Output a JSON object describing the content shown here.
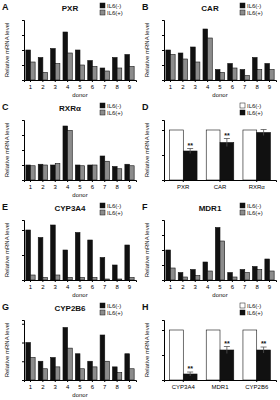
{
  "chart_data": [
    {
      "type": "bar",
      "panel_label": "A",
      "title": "PXR",
      "x_label": "donor",
      "y_label": "Relative mRNA level",
      "categories": [
        "1",
        "2",
        "3",
        "4",
        "5",
        "6",
        "7",
        "8",
        "9"
      ],
      "series": [
        {
          "name": "IL6(-)",
          "color": "#111111",
          "values": [
            1.0,
            0.75,
            1.05,
            1.6,
            1.0,
            0.65,
            0.4,
            0.75,
            0.85
          ]
        },
        {
          "name": "IL6(+)",
          "color": "#8c8c8c",
          "values": [
            0.6,
            0.25,
            0.55,
            0.9,
            0.5,
            0.45,
            0.3,
            0.4,
            0.45
          ]
        }
      ],
      "ylim": [
        0,
        2
      ],
      "yticks": [
        0,
        0.5,
        1,
        1.5,
        2
      ],
      "grid": false,
      "tick_labels": "x",
      "legend": "upper right"
    },
    {
      "type": "bar",
      "panel_label": "B",
      "title": "CAR",
      "x_label": "donor",
      "y_label": "Relative mRNA level",
      "categories": [
        "1",
        "2",
        "3",
        "4",
        "5",
        "6",
        "7",
        "8",
        "9"
      ],
      "series": [
        {
          "name": "IL6(-)",
          "color": "#111111",
          "values": [
            1.0,
            0.9,
            1.1,
            1.7,
            0.35,
            0.55,
            0.35,
            0.75,
            0.55
          ]
        },
        {
          "name": "IL6(+)",
          "color": "#8c8c8c",
          "values": [
            0.85,
            0.7,
            0.6,
            1.4,
            0.25,
            0.4,
            0.15,
            0.35,
            0.35
          ]
        }
      ],
      "ylim": [
        0,
        2
      ],
      "yticks": [
        0,
        0.5,
        1,
        1.5,
        2
      ],
      "grid": false,
      "tick_labels": "x",
      "legend": "upper right"
    },
    {
      "type": "bar",
      "panel_label": "C",
      "title": "RXRα",
      "x_label": "donor",
      "y_label": "Relative mRNA level",
      "categories": [
        "1",
        "2",
        "3",
        "4",
        "5",
        "6",
        "7",
        "8",
        "9"
      ],
      "series": [
        {
          "name": "IL6(-)",
          "color": "#111111",
          "values": [
            1.0,
            1.05,
            1.0,
            3.6,
            1.0,
            1.0,
            1.6,
            0.9,
            1.05
          ]
        },
        {
          "name": "IL6(+)",
          "color": "#8c8c8c",
          "values": [
            0.95,
            1.0,
            1.1,
            3.3,
            0.95,
            1.0,
            1.25,
            0.75,
            0.95
          ]
        }
      ],
      "ylim": [
        0,
        4
      ],
      "yticks": [
        0,
        1,
        2,
        3,
        4
      ],
      "grid": false,
      "tick_labels": "x",
      "legend": "upper right"
    },
    {
      "type": "bar",
      "panel_label": "D",
      "y_label": "Relative mRNA level",
      "categories": [
        "PXR",
        "CAR",
        "RXRα"
      ],
      "series": [
        {
          "name": "IL6(-)",
          "color": "#ffffff",
          "values": [
            1,
            1,
            1
          ]
        },
        {
          "name": "IL6(+)",
          "color": "#111111",
          "values": [
            0.58,
            0.75,
            0.95
          ],
          "errors": [
            0.05,
            0.08,
            0.06
          ],
          "annotations": [
            "**",
            "**",
            null
          ]
        }
      ],
      "ylim": [
        0,
        1.2
      ],
      "yticks": [
        0,
        0.5,
        1
      ],
      "grid": false,
      "tick_labels": "x",
      "legend": "upper right"
    },
    {
      "type": "bar",
      "panel_label": "E",
      "title": "CYP3A4",
      "x_label": "donor",
      "y_label": "Relative mRNA level",
      "categories": [
        "1",
        "2",
        "3",
        "4",
        "5",
        "6",
        "7",
        "8",
        "9"
      ],
      "series": [
        {
          "name": "IL6(-)",
          "color": "#111111",
          "values": [
            1.0,
            0.85,
            1.1,
            0.6,
            0.95,
            0.8,
            0.45,
            0.3,
            0.7
          ]
        },
        {
          "name": "IL6(+)",
          "color": "#8c8c8c",
          "values": [
            0.1,
            0.05,
            0.1,
            0.05,
            0.05,
            0.05,
            0.02,
            0.02,
            0.05
          ]
        }
      ],
      "ylim": [
        0,
        1.2
      ],
      "yticks": [
        0,
        0.5,
        1
      ],
      "grid": false,
      "tick_labels": "x",
      "legend": "upper right"
    },
    {
      "type": "bar",
      "panel_label": "F",
      "title": "MDR1",
      "x_label": "donor",
      "y_label": "Relative mRNA level",
      "categories": [
        "1",
        "2",
        "3",
        "4",
        "5",
        "6",
        "7",
        "8",
        "9"
      ],
      "series": [
        {
          "name": "IL6(-)",
          "color": "#111111",
          "values": [
            1.0,
            0.25,
            0.35,
            0.6,
            1.75,
            0.25,
            0.35,
            0.45,
            0.7
          ]
        },
        {
          "name": "IL6(+)",
          "color": "#8c8c8c",
          "values": [
            0.4,
            0.1,
            0.15,
            0.3,
            1.3,
            0.1,
            0.25,
            0.35,
            0.3
          ]
        }
      ],
      "ylim": [
        0,
        2
      ],
      "yticks": [
        0,
        0.5,
        1,
        1.5,
        2
      ],
      "grid": false,
      "tick_labels": "x",
      "legend": "upper right"
    },
    {
      "type": "bar",
      "panel_label": "G",
      "title": "CYP2B6",
      "x_label": "donor",
      "y_label": "Relative mRNA level",
      "categories": [
        "1",
        "2",
        "3",
        "4",
        "5",
        "6",
        "7",
        "8",
        "9"
      ],
      "series": [
        {
          "name": "IL6(-)",
          "color": "#111111",
          "values": [
            1.0,
            0.5,
            0.6,
            1.4,
            0.7,
            0.5,
            1.2,
            0.35,
            0.7
          ]
        },
        {
          "name": "IL6(+)",
          "color": "#8c8c8c",
          "values": [
            0.6,
            0.3,
            0.35,
            0.85,
            0.3,
            0.35,
            0.5,
            0.2,
            0.3
          ]
        }
      ],
      "ylim": [
        0,
        1.6
      ],
      "yticks": [
        0,
        0.5,
        1,
        1.5
      ],
      "grid": false,
      "tick_labels": "x",
      "legend": "upper right"
    },
    {
      "type": "bar",
      "panel_label": "H",
      "y_label": "Relative mRNA level",
      "categories": [
        "CYP3A4",
        "MDR1",
        "CYP2B6"
      ],
      "series": [
        {
          "name": "IL6(-)",
          "color": "#ffffff",
          "values": [
            1,
            1,
            1
          ]
        },
        {
          "name": "IL6(+)",
          "color": "#111111",
          "values": [
            0.12,
            0.6,
            0.6
          ],
          "errors": [
            0.04,
            0.07,
            0.06
          ],
          "annotations": [
            "**",
            "**",
            "**"
          ]
        }
      ],
      "ylim": [
        0,
        1.2
      ],
      "yticks": [
        0,
        0.5,
        1
      ],
      "grid": false,
      "tick_labels": "x",
      "legend": "upper right"
    }
  ]
}
